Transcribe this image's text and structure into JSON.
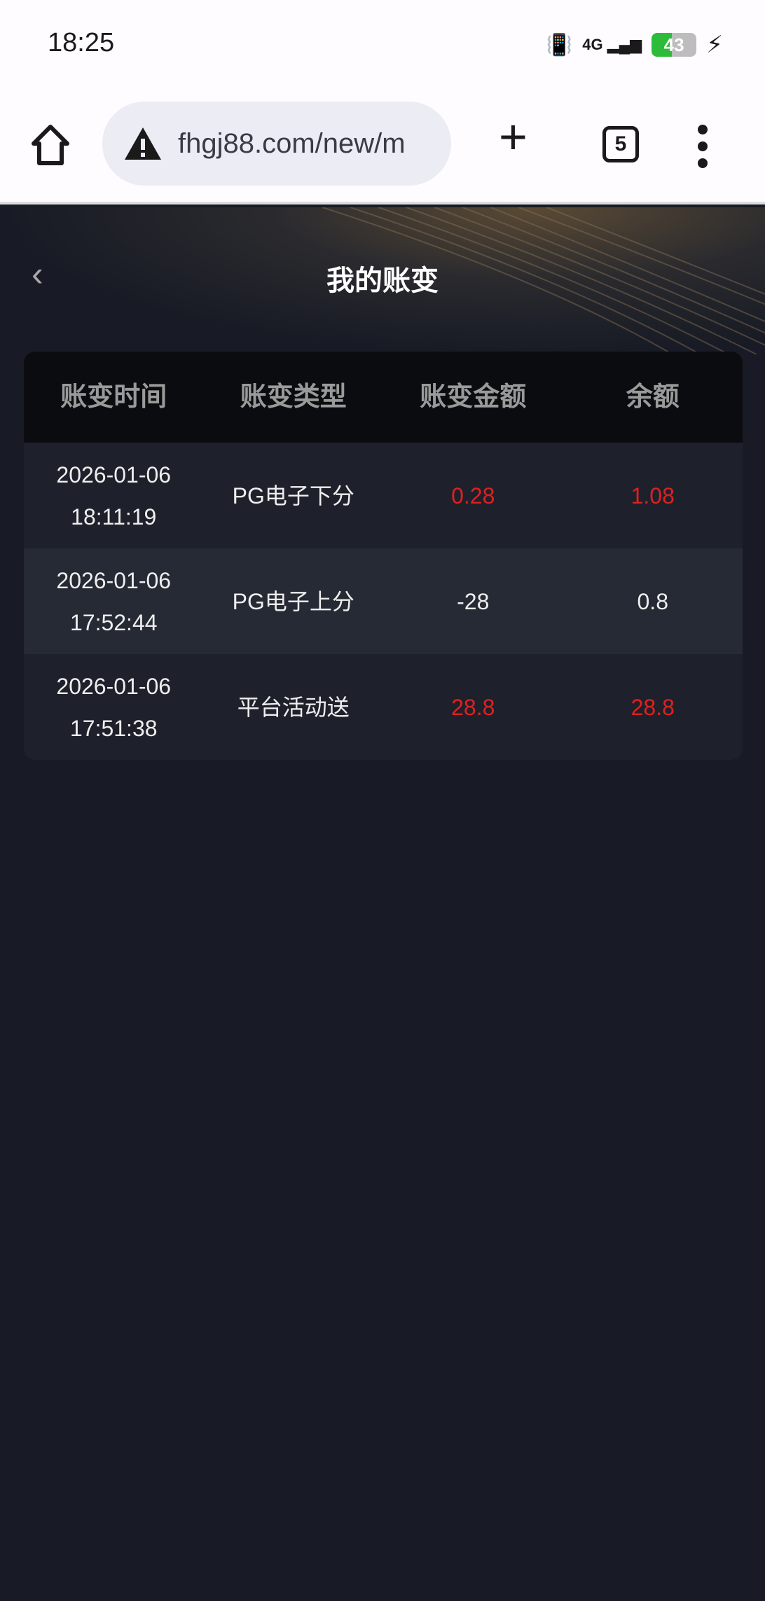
{
  "status_bar": {
    "time": "18:25",
    "network": "4G",
    "battery": "43"
  },
  "browser": {
    "url": "fhgj88.com/new/m",
    "tab_count": "5"
  },
  "page": {
    "title": "我的账变"
  },
  "table": {
    "headers": [
      "账变时间",
      "账变类型",
      "账变金额",
      "余额"
    ],
    "rows": [
      {
        "date": "2026-01-06",
        "time": "18:11:19",
        "type": "PG电子下分",
        "amount": "0.28",
        "balance": "1.08",
        "highlight": true
      },
      {
        "date": "2026-01-06",
        "time": "17:52:44",
        "type": "PG电子上分",
        "amount": "-28",
        "balance": "0.8",
        "highlight": false
      },
      {
        "date": "2026-01-06",
        "time": "17:51:38",
        "type": "平台活动送",
        "amount": "28.8",
        "balance": "28.8",
        "highlight": true
      }
    ]
  },
  "colors": {
    "positive": "#e02020",
    "background": "#181b25"
  }
}
